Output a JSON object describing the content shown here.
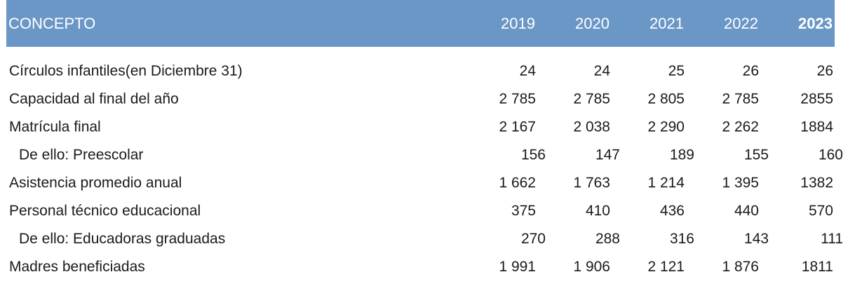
{
  "header": {
    "concept": "CONCEPTO",
    "years": [
      "2019",
      "2020",
      "2021",
      "2022",
      "2023"
    ]
  },
  "rows": [
    {
      "label": "Círculos infantiles(en Diciembre 31)",
      "values": [
        "24",
        "24",
        "25",
        "26",
        "26"
      ]
    },
    {
      "label": "Capacidad al final del año",
      "values": [
        "2 785",
        "2 785",
        "2 805",
        "2 785",
        "2855"
      ]
    },
    {
      "label": "Matrícula final",
      "values": [
        "2 167",
        "2 038",
        "2 290",
        "2 262",
        "1884"
      ]
    },
    {
      "label": "De ello: Preescolar",
      "values": [
        "156",
        "147",
        "189",
        "155",
        "160"
      ]
    },
    {
      "label": "Asistencia promedio anual",
      "values": [
        "1 662",
        "1 763",
        "1 214",
        "1 395",
        "1382"
      ]
    },
    {
      "label": "Personal técnico educacional",
      "values": [
        "375",
        "410",
        "436",
        "440",
        "570"
      ]
    },
    {
      "label": "De ello: Educadoras graduadas",
      "values": [
        "270",
        "288",
        "316",
        "143",
        "111"
      ]
    },
    {
      "label": "Madres beneficiadas",
      "values": [
        "1 991",
        "1 906",
        "2 121",
        "1 876",
        "1811"
      ]
    }
  ],
  "colors": {
    "header_bg": "#6b97c6",
    "header_text": "#ffffff"
  }
}
